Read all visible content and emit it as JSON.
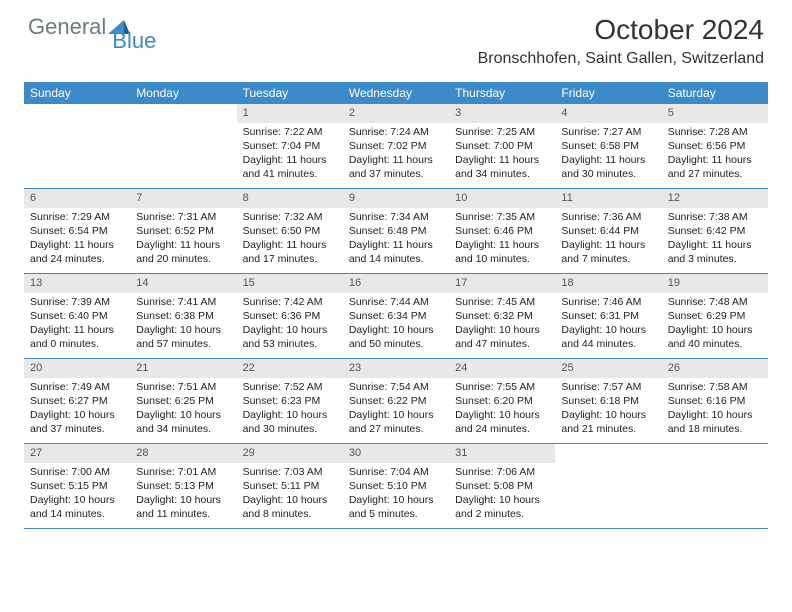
{
  "brand": {
    "part1": "General",
    "part2": "Blue"
  },
  "title": "October 2024",
  "location": "Bronschhofen, Saint Gallen, Switzerland",
  "colors": {
    "header_bg": "#3c8ac9",
    "daynum_bg": "#e8e8e8",
    "text": "#222222",
    "brand_gray": "#6b7a86",
    "brand_blue": "#3c8ac9"
  },
  "weekdays": [
    "Sunday",
    "Monday",
    "Tuesday",
    "Wednesday",
    "Thursday",
    "Friday",
    "Saturday"
  ],
  "weeks": [
    [
      null,
      null,
      {
        "n": "1",
        "sr": "Sunrise: 7:22 AM",
        "ss": "Sunset: 7:04 PM",
        "d1": "Daylight: 11 hours",
        "d2": "and 41 minutes."
      },
      {
        "n": "2",
        "sr": "Sunrise: 7:24 AM",
        "ss": "Sunset: 7:02 PM",
        "d1": "Daylight: 11 hours",
        "d2": "and 37 minutes."
      },
      {
        "n": "3",
        "sr": "Sunrise: 7:25 AM",
        "ss": "Sunset: 7:00 PM",
        "d1": "Daylight: 11 hours",
        "d2": "and 34 minutes."
      },
      {
        "n": "4",
        "sr": "Sunrise: 7:27 AM",
        "ss": "Sunset: 6:58 PM",
        "d1": "Daylight: 11 hours",
        "d2": "and 30 minutes."
      },
      {
        "n": "5",
        "sr": "Sunrise: 7:28 AM",
        "ss": "Sunset: 6:56 PM",
        "d1": "Daylight: 11 hours",
        "d2": "and 27 minutes."
      }
    ],
    [
      {
        "n": "6",
        "sr": "Sunrise: 7:29 AM",
        "ss": "Sunset: 6:54 PM",
        "d1": "Daylight: 11 hours",
        "d2": "and 24 minutes."
      },
      {
        "n": "7",
        "sr": "Sunrise: 7:31 AM",
        "ss": "Sunset: 6:52 PM",
        "d1": "Daylight: 11 hours",
        "d2": "and 20 minutes."
      },
      {
        "n": "8",
        "sr": "Sunrise: 7:32 AM",
        "ss": "Sunset: 6:50 PM",
        "d1": "Daylight: 11 hours",
        "d2": "and 17 minutes."
      },
      {
        "n": "9",
        "sr": "Sunrise: 7:34 AM",
        "ss": "Sunset: 6:48 PM",
        "d1": "Daylight: 11 hours",
        "d2": "and 14 minutes."
      },
      {
        "n": "10",
        "sr": "Sunrise: 7:35 AM",
        "ss": "Sunset: 6:46 PM",
        "d1": "Daylight: 11 hours",
        "d2": "and 10 minutes."
      },
      {
        "n": "11",
        "sr": "Sunrise: 7:36 AM",
        "ss": "Sunset: 6:44 PM",
        "d1": "Daylight: 11 hours",
        "d2": "and 7 minutes."
      },
      {
        "n": "12",
        "sr": "Sunrise: 7:38 AM",
        "ss": "Sunset: 6:42 PM",
        "d1": "Daylight: 11 hours",
        "d2": "and 3 minutes."
      }
    ],
    [
      {
        "n": "13",
        "sr": "Sunrise: 7:39 AM",
        "ss": "Sunset: 6:40 PM",
        "d1": "Daylight: 11 hours",
        "d2": "and 0 minutes."
      },
      {
        "n": "14",
        "sr": "Sunrise: 7:41 AM",
        "ss": "Sunset: 6:38 PM",
        "d1": "Daylight: 10 hours",
        "d2": "and 57 minutes."
      },
      {
        "n": "15",
        "sr": "Sunrise: 7:42 AM",
        "ss": "Sunset: 6:36 PM",
        "d1": "Daylight: 10 hours",
        "d2": "and 53 minutes."
      },
      {
        "n": "16",
        "sr": "Sunrise: 7:44 AM",
        "ss": "Sunset: 6:34 PM",
        "d1": "Daylight: 10 hours",
        "d2": "and 50 minutes."
      },
      {
        "n": "17",
        "sr": "Sunrise: 7:45 AM",
        "ss": "Sunset: 6:32 PM",
        "d1": "Daylight: 10 hours",
        "d2": "and 47 minutes."
      },
      {
        "n": "18",
        "sr": "Sunrise: 7:46 AM",
        "ss": "Sunset: 6:31 PM",
        "d1": "Daylight: 10 hours",
        "d2": "and 44 minutes."
      },
      {
        "n": "19",
        "sr": "Sunrise: 7:48 AM",
        "ss": "Sunset: 6:29 PM",
        "d1": "Daylight: 10 hours",
        "d2": "and 40 minutes."
      }
    ],
    [
      {
        "n": "20",
        "sr": "Sunrise: 7:49 AM",
        "ss": "Sunset: 6:27 PM",
        "d1": "Daylight: 10 hours",
        "d2": "and 37 minutes."
      },
      {
        "n": "21",
        "sr": "Sunrise: 7:51 AM",
        "ss": "Sunset: 6:25 PM",
        "d1": "Daylight: 10 hours",
        "d2": "and 34 minutes."
      },
      {
        "n": "22",
        "sr": "Sunrise: 7:52 AM",
        "ss": "Sunset: 6:23 PM",
        "d1": "Daylight: 10 hours",
        "d2": "and 30 minutes."
      },
      {
        "n": "23",
        "sr": "Sunrise: 7:54 AM",
        "ss": "Sunset: 6:22 PM",
        "d1": "Daylight: 10 hours",
        "d2": "and 27 minutes."
      },
      {
        "n": "24",
        "sr": "Sunrise: 7:55 AM",
        "ss": "Sunset: 6:20 PM",
        "d1": "Daylight: 10 hours",
        "d2": "and 24 minutes."
      },
      {
        "n": "25",
        "sr": "Sunrise: 7:57 AM",
        "ss": "Sunset: 6:18 PM",
        "d1": "Daylight: 10 hours",
        "d2": "and 21 minutes."
      },
      {
        "n": "26",
        "sr": "Sunrise: 7:58 AM",
        "ss": "Sunset: 6:16 PM",
        "d1": "Daylight: 10 hours",
        "d2": "and 18 minutes."
      }
    ],
    [
      {
        "n": "27",
        "sr": "Sunrise: 7:00 AM",
        "ss": "Sunset: 5:15 PM",
        "d1": "Daylight: 10 hours",
        "d2": "and 14 minutes."
      },
      {
        "n": "28",
        "sr": "Sunrise: 7:01 AM",
        "ss": "Sunset: 5:13 PM",
        "d1": "Daylight: 10 hours",
        "d2": "and 11 minutes."
      },
      {
        "n": "29",
        "sr": "Sunrise: 7:03 AM",
        "ss": "Sunset: 5:11 PM",
        "d1": "Daylight: 10 hours",
        "d2": "and 8 minutes."
      },
      {
        "n": "30",
        "sr": "Sunrise: 7:04 AM",
        "ss": "Sunset: 5:10 PM",
        "d1": "Daylight: 10 hours",
        "d2": "and 5 minutes."
      },
      {
        "n": "31",
        "sr": "Sunrise: 7:06 AM",
        "ss": "Sunset: 5:08 PM",
        "d1": "Daylight: 10 hours",
        "d2": "and 2 minutes."
      },
      null,
      null
    ]
  ]
}
